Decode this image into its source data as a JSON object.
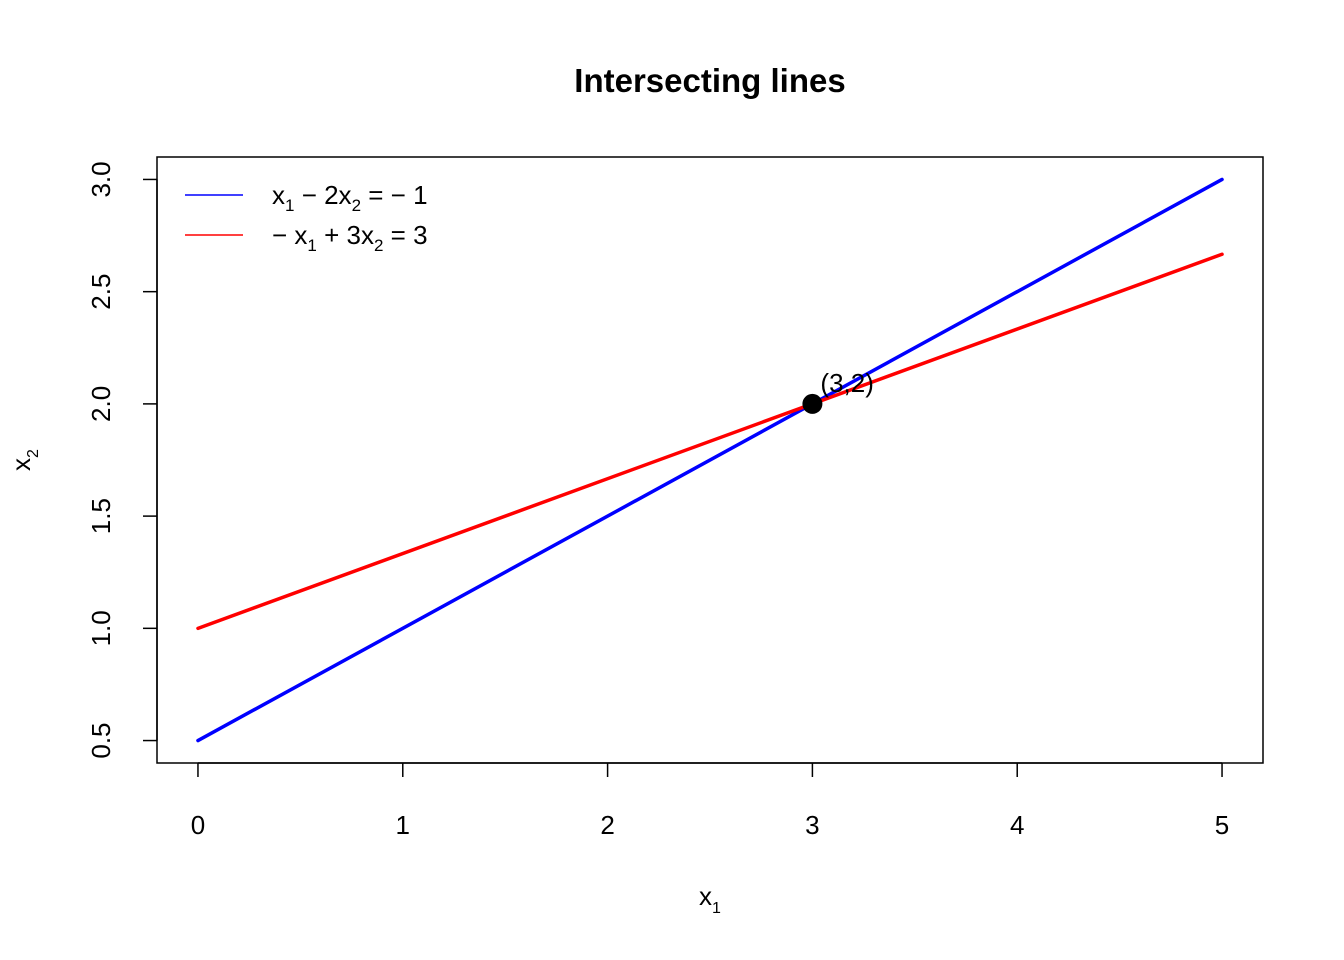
{
  "chart_data": {
    "type": "line",
    "title": "Intersecting lines",
    "xlabel": {
      "base": "x",
      "sub": "1"
    },
    "ylabel": {
      "base": "x",
      "sub": "2"
    },
    "xlim": [
      -0.2,
      5.2
    ],
    "ylim": [
      0.4,
      3.1
    ],
    "x_ticks": [
      0,
      1,
      2,
      3,
      4,
      5
    ],
    "x_tick_labels": [
      "0",
      "1",
      "2",
      "3",
      "4",
      "5"
    ],
    "y_ticks": [
      0.5,
      1.0,
      1.5,
      2.0,
      2.5,
      3.0
    ],
    "y_tick_labels": [
      "0.5",
      "1.0",
      "1.5",
      "2.0",
      "2.5",
      "3.0"
    ],
    "grid": false,
    "legend_position": "top-left",
    "series": [
      {
        "color": "#0000ff",
        "x": [
          0,
          5
        ],
        "y": [
          0.5,
          3.0
        ],
        "legend": [
          {
            "t": "x"
          },
          {
            "t": "1",
            "sub": true
          },
          {
            "t": " − 2x"
          },
          {
            "t": "2",
            "sub": true
          },
          {
            "t": " = − 1"
          }
        ]
      },
      {
        "color": "#ff0000",
        "x": [
          0,
          5
        ],
        "y": [
          1.0,
          2.6667
        ],
        "legend": [
          {
            "t": "− x"
          },
          {
            "t": "1",
            "sub": true
          },
          {
            "t": " + 3x"
          },
          {
            "t": "2",
            "sub": true
          },
          {
            "t": " = 3"
          }
        ]
      }
    ],
    "points": [
      {
        "x": 3,
        "y": 2,
        "label": "(3,2)",
        "color": "#000000"
      }
    ]
  }
}
